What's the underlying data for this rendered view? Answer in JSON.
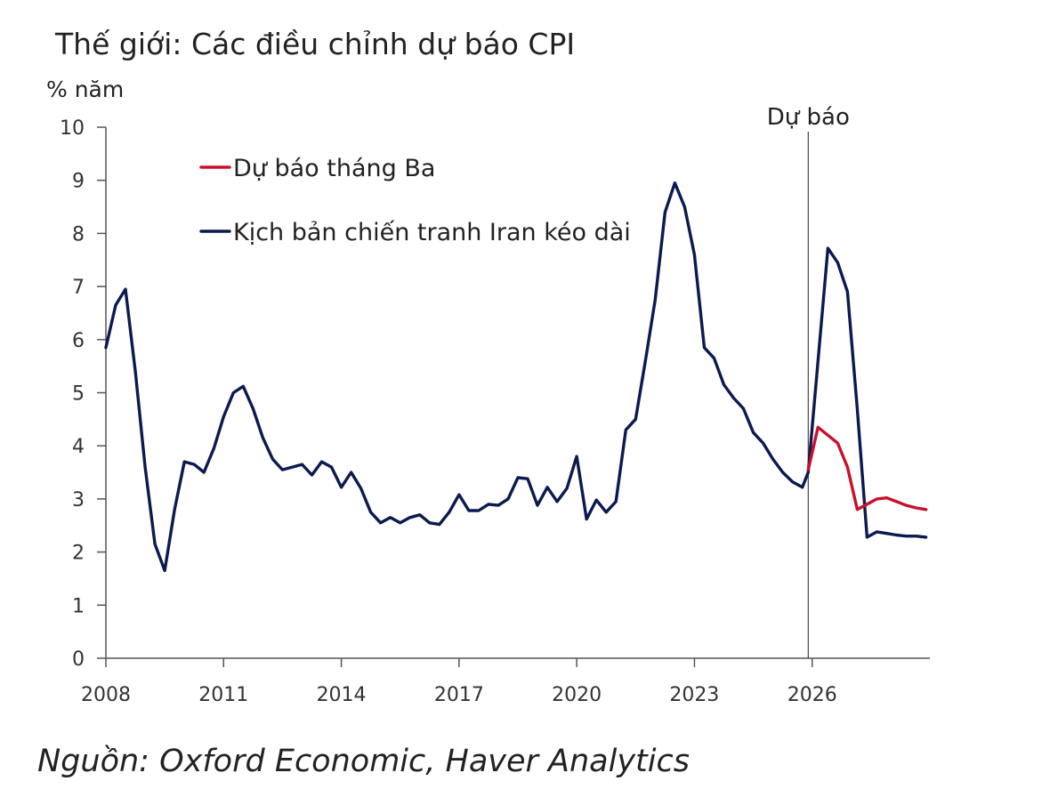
{
  "chart_data": {
    "type": "line",
    "title": "Thế giới: Các điều chỉnh dự báo CPI",
    "ylabel": "% năm",
    "xlabel": "",
    "ylim": [
      0,
      10
    ],
    "xlim": [
      2008,
      2029
    ],
    "yticks": [
      0,
      1,
      2,
      3,
      4,
      5,
      6,
      7,
      8,
      9,
      10
    ],
    "xticks": [
      2008,
      2011,
      2014,
      2017,
      2020,
      2023,
      2026
    ],
    "forecast_marker": {
      "x": 2025.9,
      "label": "Dự báo"
    },
    "legend": [
      {
        "name": "Dự báo tháng Ba",
        "color": "#c8102e"
      },
      {
        "name": "Kịch bản chiến tranh Iran kéo dài",
        "color": "#0b1a4f"
      }
    ],
    "series": [
      {
        "name": "Dự báo tháng Ba",
        "color": "#c8102e",
        "x": [
          2025.9,
          2026.15,
          2026.4,
          2026.65,
          2026.9,
          2027.15,
          2027.4,
          2027.65,
          2027.9,
          2028.15,
          2028.4,
          2028.65,
          2028.9
        ],
        "values": [
          3.55,
          4.35,
          4.2,
          4.05,
          3.6,
          2.8,
          2.9,
          3.0,
          3.02,
          2.95,
          2.88,
          2.83,
          2.8
        ]
      },
      {
        "name": "Kịch bản chiến tranh Iran kéo dài",
        "color": "#0b1a4f",
        "x": [
          2008.0,
          2008.25,
          2008.5,
          2008.75,
          2009.0,
          2009.25,
          2009.5,
          2009.75,
          2010.0,
          2010.25,
          2010.5,
          2010.75,
          2011.0,
          2011.25,
          2011.5,
          2011.75,
          2012.0,
          2012.25,
          2012.5,
          2012.75,
          2013.0,
          2013.25,
          2013.5,
          2013.75,
          2014.0,
          2014.25,
          2014.5,
          2014.75,
          2015.0,
          2015.25,
          2015.5,
          2015.75,
          2016.0,
          2016.25,
          2016.5,
          2016.75,
          2017.0,
          2017.25,
          2017.5,
          2017.75,
          2018.0,
          2018.25,
          2018.5,
          2018.75,
          2019.0,
          2019.25,
          2019.5,
          2019.75,
          2020.0,
          2020.25,
          2020.5,
          2020.75,
          2021.0,
          2021.25,
          2021.5,
          2021.75,
          2022.0,
          2022.25,
          2022.5,
          2022.75,
          2023.0,
          2023.25,
          2023.5,
          2023.75,
          2024.0,
          2024.25,
          2024.5,
          2024.75,
          2025.0,
          2025.25,
          2025.5,
          2025.75,
          2025.9,
          2026.15,
          2026.4,
          2026.65,
          2026.9,
          2027.15,
          2027.4,
          2027.65,
          2027.9,
          2028.15,
          2028.4,
          2028.65,
          2028.9
        ],
        "values": [
          5.85,
          6.65,
          6.95,
          5.4,
          3.6,
          2.15,
          1.65,
          2.8,
          3.7,
          3.65,
          3.5,
          3.95,
          4.55,
          5.0,
          5.12,
          4.7,
          4.15,
          3.75,
          3.55,
          3.6,
          3.65,
          3.45,
          3.7,
          3.6,
          3.22,
          3.5,
          3.2,
          2.75,
          2.55,
          2.65,
          2.55,
          2.65,
          2.7,
          2.55,
          2.52,
          2.75,
          3.08,
          2.78,
          2.78,
          2.9,
          2.88,
          3.0,
          3.4,
          3.38,
          2.88,
          3.22,
          2.95,
          3.2,
          3.8,
          2.62,
          2.98,
          2.75,
          2.95,
          4.3,
          4.5,
          5.6,
          6.75,
          8.4,
          8.95,
          8.5,
          7.6,
          5.85,
          5.65,
          5.15,
          4.9,
          4.7,
          4.25,
          4.05,
          3.75,
          3.5,
          3.32,
          3.22,
          3.5,
          5.6,
          7.72,
          7.45,
          6.9,
          4.7,
          2.28,
          2.38,
          2.35,
          2.32,
          2.3,
          2.3,
          2.28
        ]
      }
    ]
  },
  "source": "Nguồn: Oxford Economic, Haver Analytics"
}
